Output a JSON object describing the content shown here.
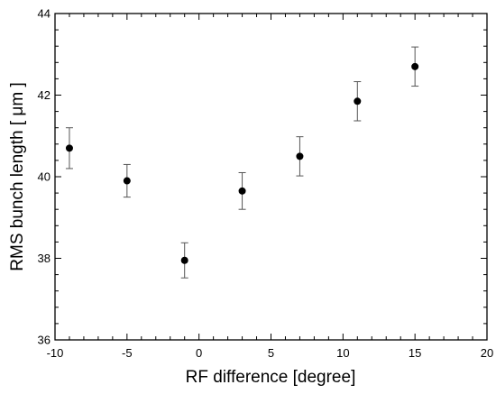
{
  "chart_data": {
    "type": "scatter",
    "xlabel": "RF difference [degree]",
    "ylabel": "RMS bunch length [ μm ]",
    "xlim": [
      -10,
      20
    ],
    "ylim": [
      36,
      44
    ],
    "x_ticks": [
      -10,
      -5,
      0,
      5,
      10,
      15,
      20
    ],
    "y_ticks": [
      36,
      38,
      40,
      42,
      44
    ],
    "grid": false,
    "legend": "none",
    "marker_color": "#000000",
    "series": [
      {
        "points": [
          {
            "x": -9,
            "y": 40.7,
            "err": 0.5
          },
          {
            "x": -5,
            "y": 39.9,
            "err": 0.4
          },
          {
            "x": -1,
            "y": 37.95,
            "err": 0.43
          },
          {
            "x": 3,
            "y": 39.65,
            "err": 0.45
          },
          {
            "x": 7,
            "y": 40.5,
            "err": 0.48
          },
          {
            "x": 11,
            "y": 41.85,
            "err": 0.48
          },
          {
            "x": 15,
            "y": 42.7,
            "err": 0.48
          }
        ]
      }
    ]
  }
}
